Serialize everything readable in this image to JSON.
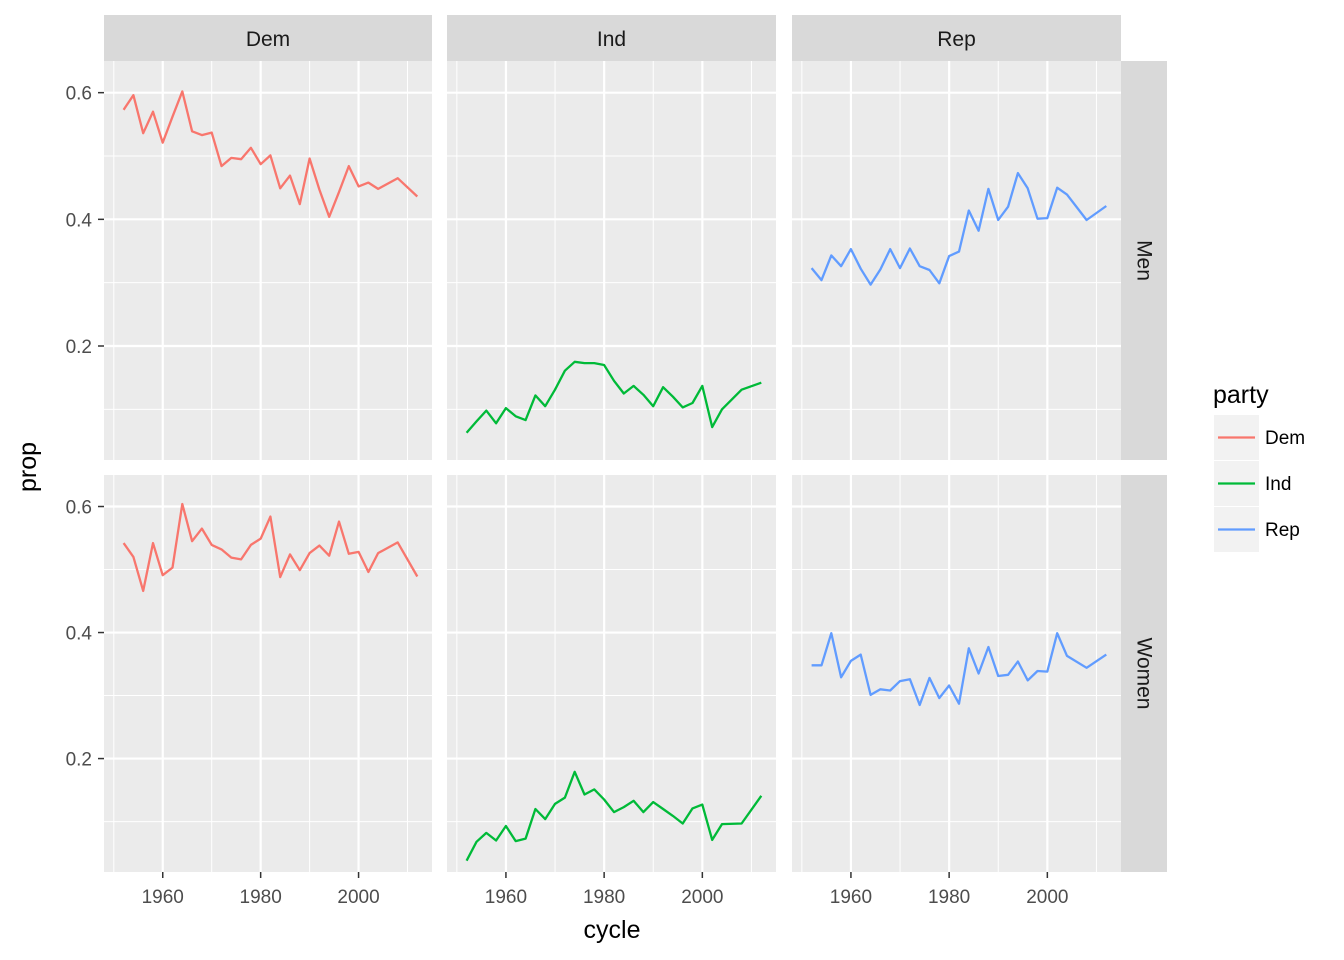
{
  "chart_data": {
    "type": "line",
    "layout": "facet-grid",
    "xlabel": "cycle",
    "ylabel": "prop",
    "xlim": [
      1948,
      2015
    ],
    "ylim": [
      0.02,
      0.65
    ],
    "x_ticks": [
      1960,
      1980,
      2000
    ],
    "x_tick_labels": [
      "1960",
      "1980",
      "2000"
    ],
    "y_ticks": [
      0.2,
      0.4,
      0.6
    ],
    "y_tick_labels": [
      "0.2",
      "0.4",
      "0.6"
    ],
    "grid": true,
    "col_facets": [
      "Dem",
      "Ind",
      "Rep"
    ],
    "row_facets": [
      "Men",
      "Women"
    ],
    "legend": {
      "title": "party",
      "position": "right",
      "entries": [
        {
          "name": "Dem",
          "color": "#F8766D"
        },
        {
          "name": "Ind",
          "color": "#00BA38"
        },
        {
          "name": "Rep",
          "color": "#619CFF"
        }
      ]
    },
    "x": [
      1952,
      1954,
      1956,
      1958,
      1960,
      1962,
      1964,
      1966,
      1968,
      1970,
      1972,
      1974,
      1976,
      1978,
      1980,
      1982,
      1984,
      1986,
      1988,
      1990,
      1992,
      1994,
      1996,
      1998,
      2000,
      2002,
      2004,
      2008,
      2012
    ],
    "panels": [
      {
        "row": "Men",
        "col": "Dem",
        "color": "#F8766D",
        "values": [
          0.573,
          0.596,
          0.536,
          0.57,
          0.521,
          0.562,
          0.602,
          0.539,
          0.533,
          0.537,
          0.484,
          0.497,
          0.495,
          0.513,
          0.487,
          0.501,
          0.449,
          0.469,
          0.424,
          0.496,
          0.447,
          0.404,
          0.443,
          0.484,
          0.452,
          0.458,
          0.448,
          0.465,
          0.436
        ]
      },
      {
        "row": "Men",
        "col": "Ind",
        "color": "#00BA38",
        "values": [
          0.063,
          0.081,
          0.098,
          0.078,
          0.102,
          0.089,
          0.083,
          0.122,
          0.105,
          0.131,
          0.161,
          0.175,
          0.173,
          0.173,
          0.17,
          0.145,
          0.125,
          0.137,
          0.123,
          0.105,
          0.135,
          0.12,
          0.103,
          0.11,
          0.137,
          0.072,
          0.1,
          0.131,
          0.142
        ]
      },
      {
        "row": "Men",
        "col": "Rep",
        "color": "#619CFF",
        "values": [
          0.323,
          0.304,
          0.343,
          0.326,
          0.353,
          0.322,
          0.297,
          0.321,
          0.353,
          0.323,
          0.354,
          0.326,
          0.32,
          0.299,
          0.342,
          0.349,
          0.414,
          0.382,
          0.448,
          0.399,
          0.42,
          0.473,
          0.449,
          0.401,
          0.402,
          0.45,
          0.439,
          0.399,
          0.421
        ]
      },
      {
        "row": "Women",
        "col": "Dem",
        "color": "#F8766D",
        "values": [
          0.542,
          0.52,
          0.466,
          0.542,
          0.491,
          0.503,
          0.604,
          0.545,
          0.565,
          0.539,
          0.532,
          0.519,
          0.516,
          0.539,
          0.549,
          0.584,
          0.488,
          0.524,
          0.499,
          0.526,
          0.538,
          0.522,
          0.576,
          0.525,
          0.528,
          0.496,
          0.526,
          0.543,
          0.489
        ]
      },
      {
        "row": "Women",
        "col": "Ind",
        "color": "#00BA38",
        "values": [
          0.038,
          0.068,
          0.082,
          0.07,
          0.093,
          0.069,
          0.073,
          0.12,
          0.104,
          0.128,
          0.138,
          0.179,
          0.143,
          0.151,
          0.135,
          0.115,
          0.123,
          0.133,
          0.115,
          0.131,
          0.12,
          0.109,
          0.097,
          0.121,
          0.127,
          0.071,
          0.096,
          0.097,
          0.141
        ]
      },
      {
        "row": "Women",
        "col": "Rep",
        "color": "#619CFF",
        "values": [
          0.348,
          0.348,
          0.399,
          0.329,
          0.355,
          0.365,
          0.301,
          0.31,
          0.308,
          0.323,
          0.326,
          0.285,
          0.328,
          0.296,
          0.316,
          0.287,
          0.375,
          0.335,
          0.377,
          0.331,
          0.333,
          0.354,
          0.324,
          0.339,
          0.338,
          0.399,
          0.363,
          0.344,
          0.365
        ]
      }
    ]
  }
}
